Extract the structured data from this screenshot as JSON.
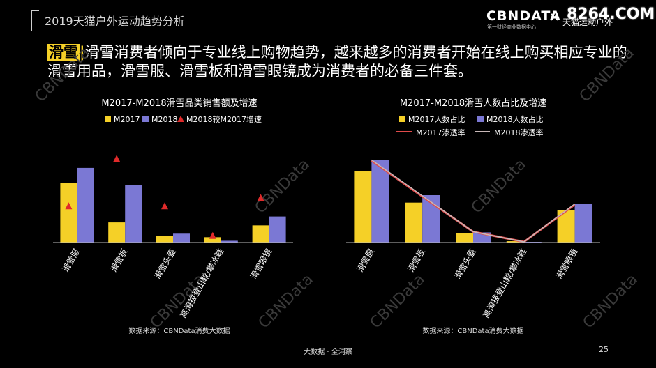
{
  "header": {
    "report_title": "2019天猫户外运动趋势分析",
    "brand_name": "CBNDATA",
    "brand_sub": "第一财经商业数据中心",
    "cross": "×",
    "partner": "天猫运动户外",
    "site_watermark": "8264.COM"
  },
  "headline": {
    "tag": "滑雪",
    "separator": "|",
    "text": "滑雪消费者倾向于专业线上购物趋势，越来越多的消费者开始在线上购买相应专业的滑雪用品，滑雪服、滑雪板和滑雪眼镜成为消费者的必备三件套。"
  },
  "watermark_text": "CBNData",
  "colors": {
    "y2017": "#f5d027",
    "y2018": "#7b78d4",
    "growth": "#e02a2a",
    "pen2017": "#e04a4a",
    "pen2018": "#c8b8b8"
  },
  "chart_data": [
    {
      "type": "bar",
      "title": "M2017-M2018滑雪品类销售额及增速",
      "categories": [
        "滑雪服",
        "滑雪板",
        "滑雪头盔",
        "高海拔登山靴/攀冰鞋",
        "滑雪眼镜"
      ],
      "series": [
        {
          "name": "M2017",
          "kind": "bar",
          "values": [
            100,
            34,
            11,
            9,
            29
          ]
        },
        {
          "name": "M2018",
          "kind": "bar",
          "values": [
            126,
            97,
            15,
            3,
            44
          ]
        },
        {
          "name": "M2018较M2017增速",
          "kind": "marker",
          "values": [
            62,
            142,
            62,
            12,
            76
          ]
        }
      ],
      "ylim": [
        0,
        160
      ],
      "source": "数据来源：CBNData消费大数据"
    },
    {
      "type": "bar",
      "title": "M2017-M2018滑雪人数占比及增速",
      "categories": [
        "滑雪服",
        "滑雪板",
        "滑雪头盔",
        "高海拔登山靴/攀冰鞋",
        "滑雪眼镜"
      ],
      "series": [
        {
          "name": "M2017人数占比",
          "kind": "bar",
          "values": [
            106,
            59,
            14,
            2,
            48
          ]
        },
        {
          "name": "M2018人数占比",
          "kind": "bar",
          "values": [
            122,
            70,
            15,
            1,
            57
          ]
        },
        {
          "name": "M2017渗透率",
          "kind": "line",
          "values": [
            121,
            68,
            16,
            1,
            56
          ]
        },
        {
          "name": "M2018渗透率",
          "kind": "line",
          "values": [
            122,
            69,
            16,
            1,
            57
          ]
        }
      ],
      "ylim": [
        0,
        140
      ],
      "source": "数据来源：CBNData消费大数据"
    }
  ],
  "footer": {
    "text": "大数据 · 全洞察",
    "page": "25"
  }
}
